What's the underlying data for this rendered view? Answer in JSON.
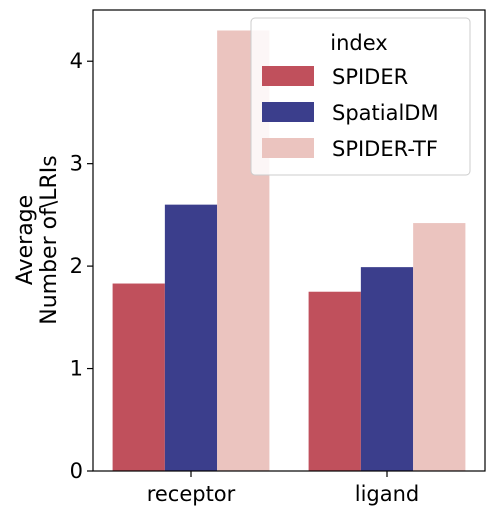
{
  "chart_data": {
    "type": "bar",
    "categories": [
      "receptor",
      "ligand"
    ],
    "series": [
      {
        "name": "SPIDER",
        "values": [
          1.83,
          1.75
        ],
        "color": "#c0505c"
      },
      {
        "name": "SpatialDM",
        "values": [
          2.6,
          1.99
        ],
        "color": "#3b3e8c"
      },
      {
        "name": "SPIDER-TF",
        "values": [
          4.3,
          2.42
        ],
        "color": "#ebc4bf"
      }
    ],
    "ylabel_lines": [
      "Average",
      "Number of\\LRIs"
    ],
    "xlabel": "",
    "ylim": [
      0,
      4.5
    ],
    "yticks": [
      "0",
      "1",
      "2",
      "3",
      "4"
    ],
    "legend": {
      "title": "index",
      "position": "top-right"
    },
    "grid": false
  }
}
